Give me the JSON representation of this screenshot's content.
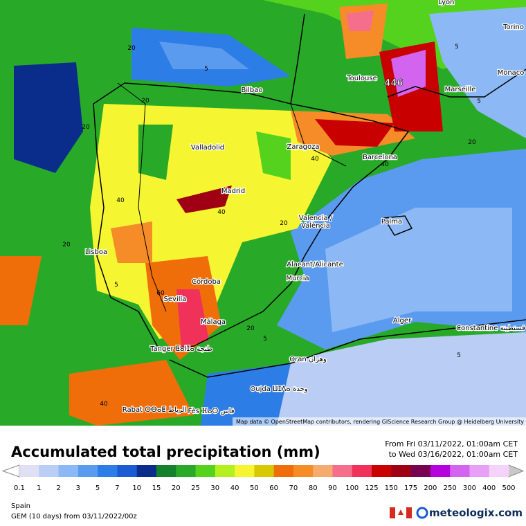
{
  "map": {
    "cities": [
      "Lyon",
      "Torino",
      "Monaco",
      "Toulouse",
      "Marseille",
      "Bilbao",
      "Valladolid",
      "Zaragoza",
      "Barcelona",
      "Madrid",
      "Valencia /",
      "València",
      "Palma",
      "Lisboa",
      "Alacant/Alicante",
      "Murcia",
      "Córdoba",
      "Sevilla",
      "Málaga",
      "Alger",
      "Constantine قسنطينة",
      "Tanger ⵟⴰⵏⵊⴰ طنجة",
      "Oran وهران",
      "Oujda ⵡⵊⴷⴰ وجدة",
      "Rabat ⵔⴱⴰⵟ الرباط",
      "Fès ⴼⴰⵙ فاس"
    ],
    "contour_labels": [
      "20",
      "5",
      "20",
      "20",
      "40",
      "40",
      "40",
      "40",
      "20",
      "20",
      "5",
      "60",
      "20",
      "5",
      "40",
      "5",
      "20",
      "5",
      "5"
    ],
    "max_label": "446",
    "attribution": "Map data © OpenStreetMap contributors, rendering GIScience Research Group @ Heidelberg University"
  },
  "title": "Accumulated total precipitation (mm)",
  "period": {
    "from": "From Fri 03/11/2022, 01:00am CET",
    "to": "to Wed 03/16/2022, 01:00am CET"
  },
  "legend": {
    "ticks": [
      0.1,
      1,
      2,
      3,
      5,
      7,
      10,
      15,
      20,
      25,
      30,
      40,
      50,
      60,
      70,
      80,
      90,
      100,
      125,
      150,
      175,
      200,
      250,
      300,
      400,
      500
    ],
    "colors": [
      "#e0e0f5",
      "#b9cdf5",
      "#8cb9f5",
      "#5a9bf0",
      "#2d7de6",
      "#1a5ad2",
      "#0a2d8c",
      "#14822d",
      "#28aa28",
      "#55d21e",
      "#b4f01e",
      "#f5f532",
      "#d7c800",
      "#f06e0a",
      "#f58c28",
      "#f5aa6e",
      "#f56e8c",
      "#f0325a",
      "#c80000",
      "#a00014",
      "#780050",
      "#b400dc",
      "#d264f0",
      "#e6a0f5",
      "#f5d2fa"
    ],
    "over_color": "#c8c8c8"
  },
  "footer": {
    "region": "Spain",
    "model": "GEM (10 days) from 03/11/2022/00z",
    "brand": "meteologix.com"
  }
}
